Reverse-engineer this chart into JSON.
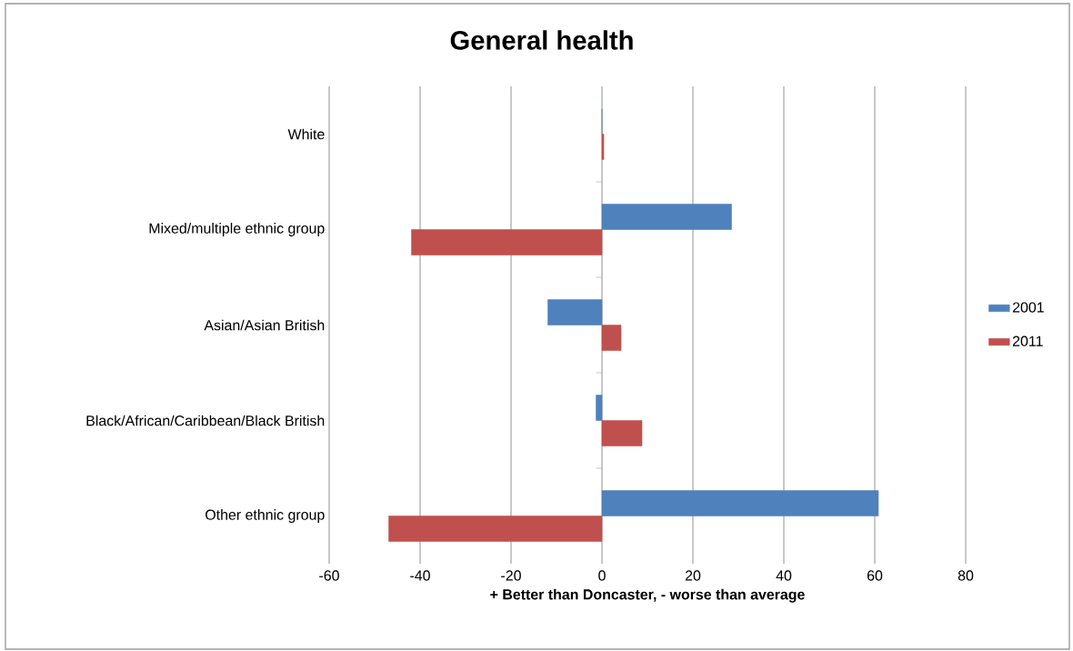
{
  "chart_data": {
    "type": "bar",
    "orientation": "horizontal",
    "title": "General health",
    "xlabel": "+ Better than Doncaster, - worse than average",
    "categories": [
      "White",
      "Mixed/multiple ethnic group",
      "Asian/Asian British",
      "Black/African/Caribbean/Black British",
      "Other ethnic group"
    ],
    "series": [
      {
        "name": "2001",
        "color": "#4f81bd",
        "values": [
          0,
          28.5,
          -11.9,
          -1.3,
          60.8
        ]
      },
      {
        "name": "2011",
        "color": "#c0504d",
        "values": [
          0.4,
          -41.9,
          4.2,
          8.8,
          -46.9
        ]
      }
    ],
    "xlim": [
      -60,
      80
    ],
    "xticks": [
      -60,
      -40,
      -20,
      0,
      20,
      40,
      60,
      80
    ],
    "grid": "x",
    "legend": "right"
  }
}
